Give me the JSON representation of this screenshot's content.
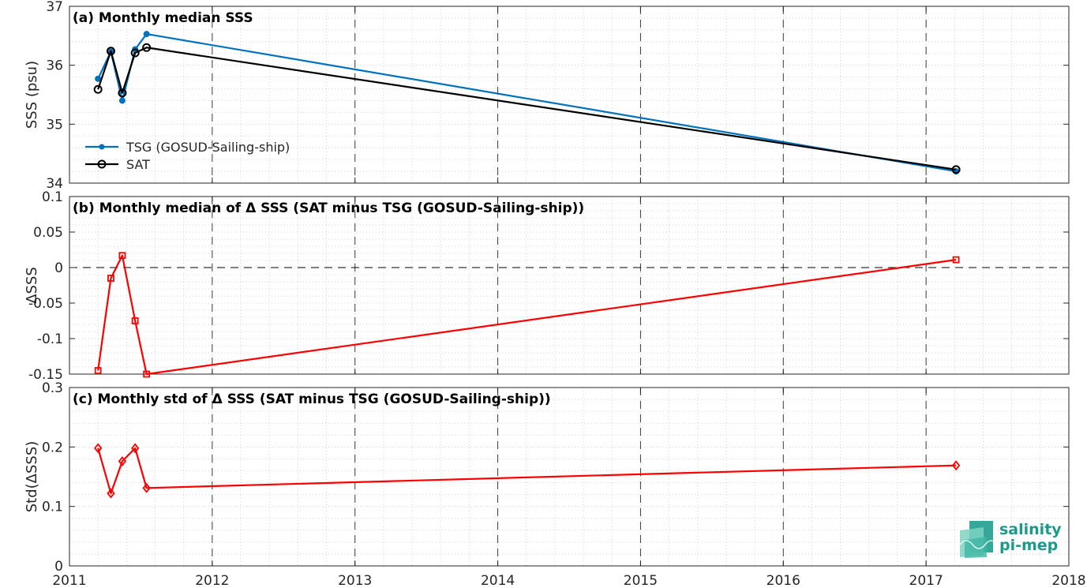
{
  "chart_data": [
    {
      "type": "line",
      "title": "(a) Monthly median SSS",
      "xlabel": "",
      "ylabel": "SSS (psu)",
      "xlim": [
        2011,
        2018
      ],
      "ylim": [
        34,
        37
      ],
      "xticks": [
        "2011",
        "2012",
        "2013",
        "2014",
        "2015",
        "2016",
        "2017",
        "2018"
      ],
      "yticks": [
        "34",
        "35",
        "36",
        "37"
      ],
      "grid": true,
      "legend": "bottom-left",
      "series": [
        {
          "name": "TSG (GOSUD-Sailing-ship)",
          "color": "#0072BD",
          "marker": "dot",
          "x": [
            2011.2,
            2011.29,
            2011.37,
            2011.46,
            2011.54,
            2017.21
          ],
          "y": [
            35.77,
            36.23,
            35.4,
            36.27,
            36.53,
            34.2
          ]
        },
        {
          "name": "SAT",
          "color": "#000000",
          "marker": "circle",
          "x": [
            2011.2,
            2011.29,
            2011.37,
            2011.46,
            2011.54,
            2017.21
          ],
          "y": [
            35.59,
            36.24,
            35.53,
            36.21,
            36.3,
            34.23
          ]
        }
      ]
    },
    {
      "type": "line",
      "title": "(b) Monthly median of Δ SSS (SAT minus TSG (GOSUD-Sailing-ship))",
      "xlabel": "",
      "ylabel": "ΔSSS",
      "xlim": [
        2011,
        2018
      ],
      "ylim": [
        -0.15,
        0.1
      ],
      "yticks": [
        "-0.15",
        "-0.1",
        "-0.05",
        "0",
        "0.05",
        "0.1"
      ],
      "grid": true,
      "zero_line": true,
      "series": [
        {
          "color": "#FF0000",
          "marker": "square",
          "x": [
            2011.2,
            2011.29,
            2011.37,
            2011.46,
            2011.54,
            2017.21
          ],
          "y": [
            -0.145,
            -0.015,
            0.017,
            -0.075,
            -0.15,
            0.011
          ]
        }
      ]
    },
    {
      "type": "line",
      "title": "(c) Monthly std of Δ SSS (SAT minus TSG (GOSUD-Sailing-ship))",
      "xlabel": "",
      "ylabel": "Std(ΔSSS)",
      "xlim": [
        2011,
        2018
      ],
      "ylim": [
        0,
        0.3
      ],
      "yticks": [
        "0",
        "0.1",
        "0.2",
        "0.3"
      ],
      "grid": true,
      "series": [
        {
          "color": "#FF0000",
          "marker": "diamond",
          "x": [
            2011.2,
            2011.29,
            2011.37,
            2011.46,
            2011.54,
            2017.21
          ],
          "y": [
            0.198,
            0.122,
            0.176,
            0.198,
            0.131,
            0.169
          ]
        }
      ]
    }
  ],
  "logo": {
    "line1": "salinity",
    "line2": "pi-mep"
  }
}
